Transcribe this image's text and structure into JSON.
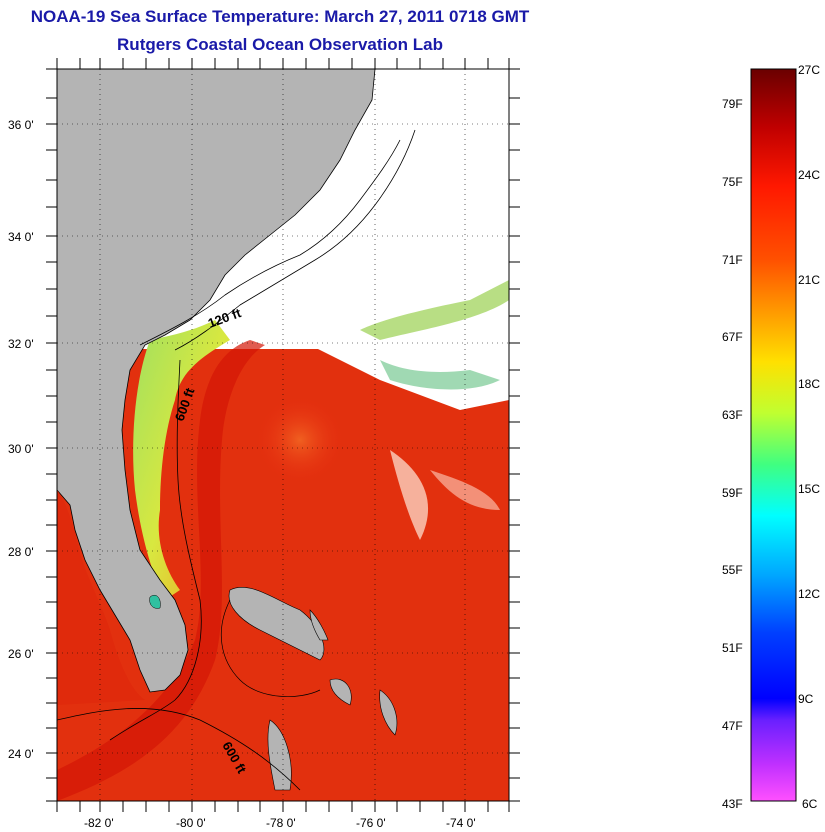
{
  "title": {
    "line1": "NOAA-19 Sea Surface Temperature:  March 27, 2011 0718 GMT",
    "line2": "Rutgers Coastal Ocean Observation Lab"
  },
  "map": {
    "longitude_labels": [
      "-82 0'",
      "-80 0'",
      "-78 0'",
      "-76 0'",
      "-74 0'"
    ],
    "latitude_labels": [
      "36 0'",
      "34 0'",
      "32 0'",
      "30 0'",
      "28 0'",
      "26 0'",
      "24 0'"
    ],
    "contour_labels": [
      "120 ft",
      "600 ft",
      "600 ft"
    ],
    "colors": {
      "land": "#b4b4b4",
      "cloud": "#ffffff",
      "warm_water": "#e82a10",
      "gulf_stream": "#d81808"
    }
  },
  "colorbar": {
    "fahrenheit_labels": [
      "79F",
      "75F",
      "71F",
      "67F",
      "63F",
      "59F",
      "55F",
      "51F",
      "47F",
      "43F"
    ],
    "celsius_labels": [
      "27C",
      "24C",
      "21C",
      "18C",
      "15C",
      "12C",
      "9C",
      "6C"
    ],
    "range_celsius": [
      6,
      27
    ],
    "gradient_colors": [
      "#6a0000",
      "#c00000",
      "#ff2000",
      "#ff6000",
      "#ffa000",
      "#ffe000",
      "#c8ff20",
      "#40ff80",
      "#00ffff",
      "#00a0ff",
      "#0030ff",
      "#0000ff",
      "#8030ff",
      "#ff40ff"
    ]
  }
}
